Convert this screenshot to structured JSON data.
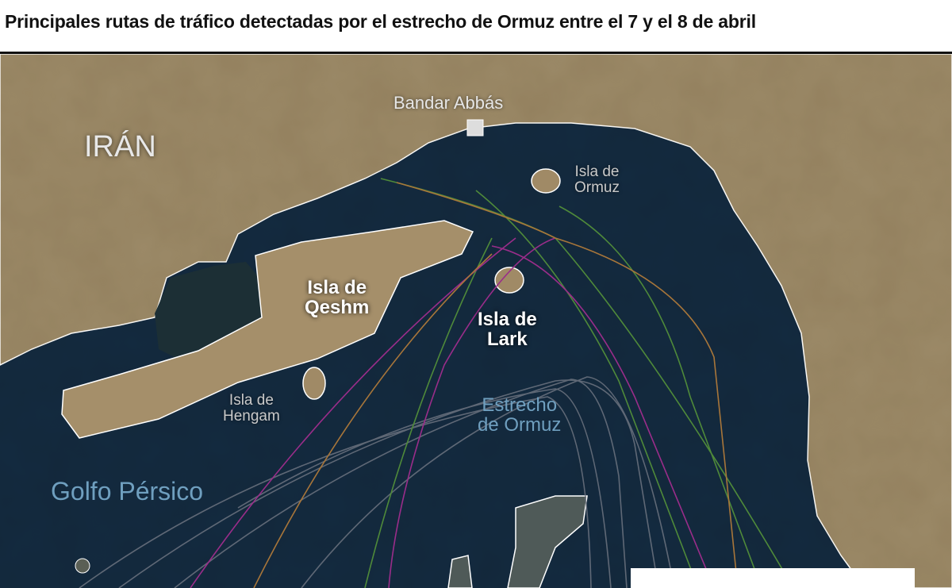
{
  "title": "Principales rutas de tráfico detectadas por el estrecho de Ormuz entre el 7 y el 8 de abril",
  "labels": {
    "country": "IRÁN",
    "city": "Bandar Abbás",
    "qeshm": [
      "Isla de",
      "Qeshm"
    ],
    "lark": [
      "Isla de",
      "Lark"
    ],
    "ormuz_island": [
      "Isla de",
      "Ormuz"
    ],
    "hengam": [
      "Isla de",
      "Hengam"
    ],
    "strait": [
      "Estrecho",
      "de Ormuz"
    ],
    "gulf": "Golfo Pérsico"
  },
  "colors": {
    "land": "#9c8a68",
    "water": "#132a40",
    "route_grey": "#6d7480",
    "route_green": "#4f8a3a",
    "route_magenta": "#9a2d8a",
    "route_orange": "#a8763a"
  }
}
